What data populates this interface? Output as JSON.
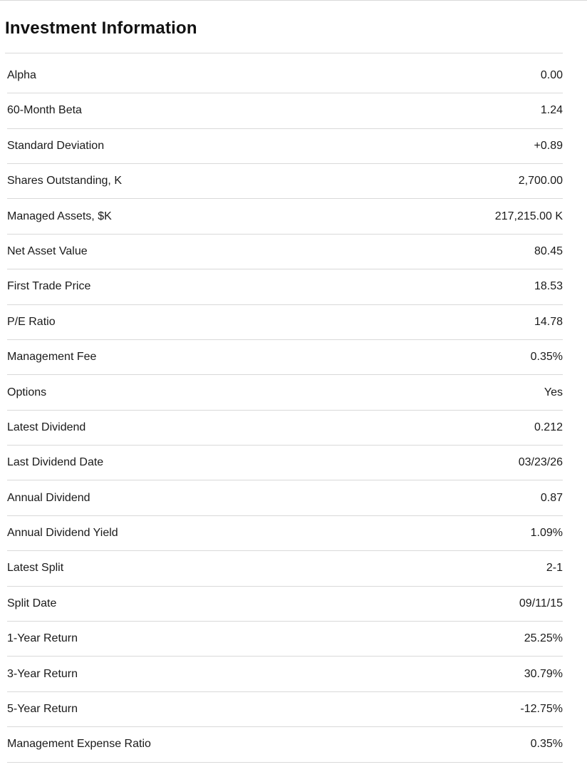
{
  "section": {
    "title": "Investment Information"
  },
  "colors": {
    "background": "#ffffff",
    "title_text": "#111111",
    "row_text": "#1a1a1a",
    "divider": "#d9d9d9"
  },
  "table": {
    "rows": [
      {
        "label": "Alpha",
        "value": "0.00"
      },
      {
        "label": "60-Month Beta",
        "value": "1.24"
      },
      {
        "label": "Standard Deviation",
        "value": "+0.89"
      },
      {
        "label": "Shares Outstanding, K",
        "value": "2,700.00"
      },
      {
        "label": "Managed Assets, $K",
        "value": "217,215.00 K"
      },
      {
        "label": "Net Asset Value",
        "value": "80.45"
      },
      {
        "label": "First Trade Price",
        "value": "18.53"
      },
      {
        "label": "P/E Ratio",
        "value": "14.78"
      },
      {
        "label": "Management Fee",
        "value": "0.35%"
      },
      {
        "label": "Options",
        "value": "Yes"
      },
      {
        "label": "Latest Dividend",
        "value": "0.212"
      },
      {
        "label": "Last Dividend Date",
        "value": "03/23/26"
      },
      {
        "label": "Annual Dividend",
        "value": "0.87"
      },
      {
        "label": "Annual Dividend Yield",
        "value": "1.09%"
      },
      {
        "label": "Latest Split",
        "value": "2-1"
      },
      {
        "label": "Split Date",
        "value": "09/11/15"
      },
      {
        "label": "1-Year Return",
        "value": "25.25%"
      },
      {
        "label": "3-Year Return",
        "value": "30.79%"
      },
      {
        "label": "5-Year Return",
        "value": "-12.75%"
      },
      {
        "label": "Management Expense Ratio",
        "value": "0.35%"
      }
    ]
  }
}
